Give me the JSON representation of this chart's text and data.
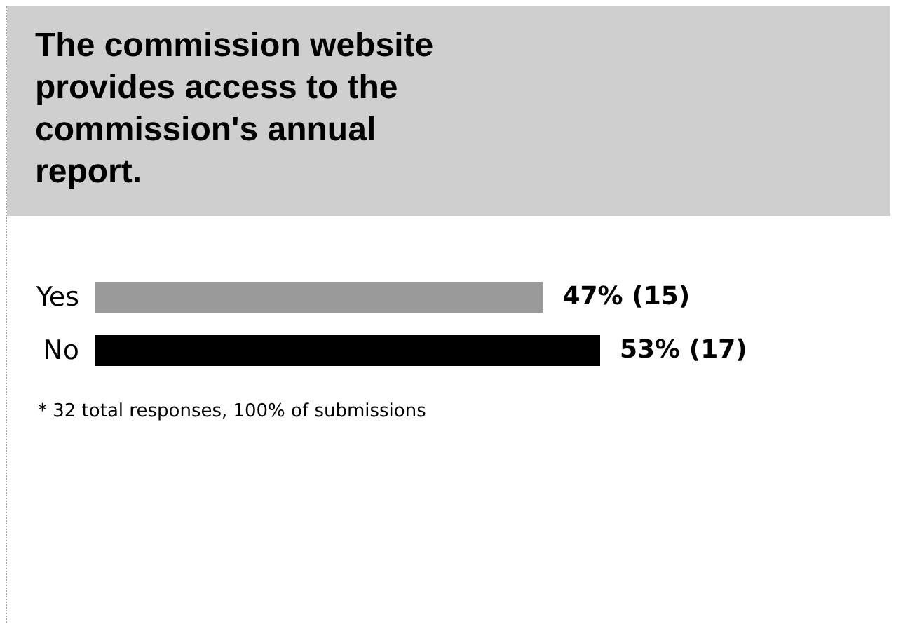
{
  "chart_data": {
    "type": "bar",
    "orientation": "horizontal",
    "tick_labels": "y",
    "title": "The commission website provides access to the commission's annual report.",
    "categories": [
      "Yes",
      "No"
    ],
    "values": [
      47,
      53
    ],
    "colors": [
      "#9a9a9a",
      "#000000"
    ],
    "value_labels": [
      "47% (15)",
      "53% (17)"
    ],
    "annotations": [
      "* 32 total responses, 100% of submissions"
    ]
  }
}
